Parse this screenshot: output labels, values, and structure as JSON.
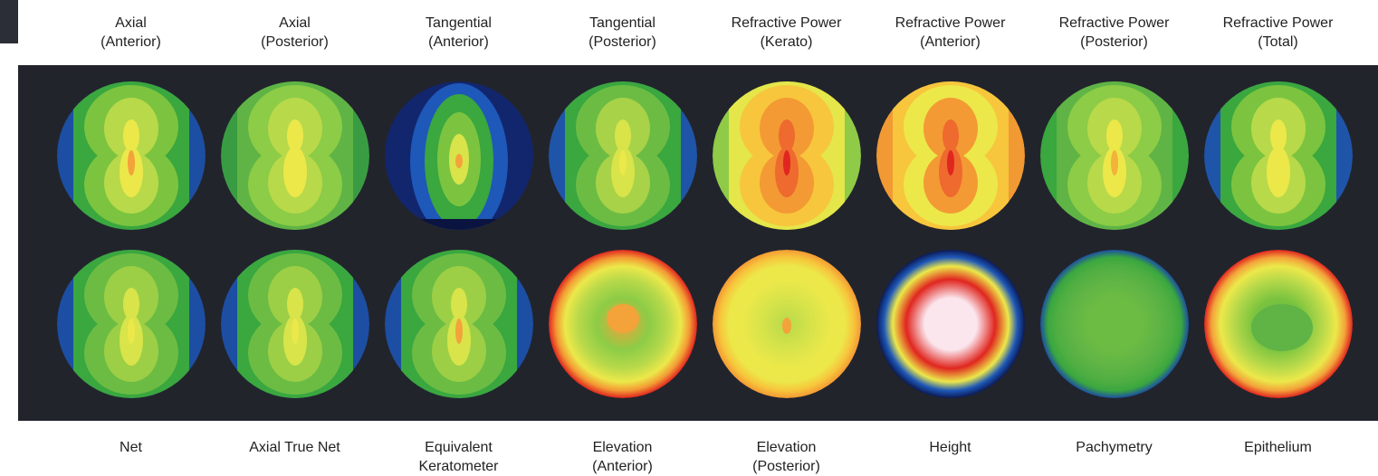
{
  "top_labels": [
    {
      "line1": "Axial",
      "line2": "(Anterior)"
    },
    {
      "line1": "Axial",
      "line2": "(Posterior)"
    },
    {
      "line1": "Tangential",
      "line2": "(Anterior)"
    },
    {
      "line1": "Tangential",
      "line2": "(Posterior)"
    },
    {
      "line1": "Refractive Power",
      "line2": "(Kerato)"
    },
    {
      "line1": "Refractive Power",
      "line2": "(Anterior)"
    },
    {
      "line1": "Refractive Power",
      "line2": "(Posterior)"
    },
    {
      "line1": "Refractive Power",
      "line2": "(Total)"
    }
  ],
  "bottom_labels": [
    {
      "line1": "Net",
      "line2": ""
    },
    {
      "line1": "Axial True Net",
      "line2": ""
    },
    {
      "line1": "Equivalent",
      "line2": "Keratometer"
    },
    {
      "line1": "Elevation",
      "line2": "(Anterior)"
    },
    {
      "line1": "Elevation",
      "line2": "(Posterior)"
    },
    {
      "line1": "Height",
      "line2": ""
    },
    {
      "line1": "Pachymetry",
      "line2": ""
    },
    {
      "line1": "Epithelium",
      "line2": ""
    }
  ],
  "maps": [
    {
      "name": "axial-anterior-map",
      "style": "hourglass",
      "colors": [
        "#1c4fa3",
        "#3aa73f",
        "#7cc43f",
        "#b8d94a",
        "#ece84a",
        "#f3a33a"
      ]
    },
    {
      "name": "axial-posterior-map",
      "style": "hourglass",
      "colors": [
        "#3a9c42",
        "#5fb445",
        "#8ccc46",
        "#b8d94a",
        "#ece84a",
        "#ece84a"
      ]
    },
    {
      "name": "tangential-anterior-map",
      "style": "oval",
      "colors": [
        "#12266e",
        "#1e58b8",
        "#3aa73f",
        "#7cc43f",
        "#d8e44a",
        "#f3a33a"
      ]
    },
    {
      "name": "tangential-posterior-map",
      "style": "hourglass",
      "colors": [
        "#1f55a8",
        "#3aa73f",
        "#6cbc44",
        "#a8d248",
        "#d8e44a",
        "#ece84a"
      ]
    },
    {
      "name": "refractive-power-kerato-map",
      "style": "hourglass",
      "colors": [
        "#8fcb46",
        "#e4e64a",
        "#f7c63c",
        "#f39a34",
        "#ee6a2e",
        "#e0261f"
      ]
    },
    {
      "name": "refractive-power-anterior-map",
      "style": "hourglass",
      "colors": [
        "#f19a33",
        "#f7c63c",
        "#ece84a",
        "#f39a34",
        "#ee6a2e",
        "#e0261f"
      ]
    },
    {
      "name": "refractive-power-posterior-map",
      "style": "hourglass",
      "colors": [
        "#3aa73f",
        "#5fb445",
        "#8ccc46",
        "#b8d94a",
        "#ece84a",
        "#f3b23a"
      ]
    },
    {
      "name": "refractive-power-total-map",
      "style": "hourglass",
      "colors": [
        "#1f55a8",
        "#3aa73f",
        "#7cc43f",
        "#b8d94a",
        "#ece84a",
        "#ece84a"
      ]
    },
    {
      "name": "net-map",
      "style": "hourglass",
      "colors": [
        "#1c4fa3",
        "#3aa73f",
        "#6cbc44",
        "#9ccf46",
        "#d8e44a",
        "#ece84a"
      ]
    },
    {
      "name": "axial-true-net-map",
      "style": "hourglass",
      "colors": [
        "#1c4fa3",
        "#3aa73f",
        "#6cbc44",
        "#9ccf46",
        "#d8e44a",
        "#ece84a"
      ]
    },
    {
      "name": "equivalent-keratometer-map",
      "style": "hourglass",
      "colors": [
        "#1c4fa3",
        "#3aa73f",
        "#6cbc44",
        "#9ccf46",
        "#d8e44a",
        "#f3a33a"
      ]
    },
    {
      "name": "elevation-anterior-map",
      "style": "rings",
      "colors": [
        "#e0261f",
        "#f39a34",
        "#ece84a",
        "#b8d94a",
        "#8ccc46",
        "#f3a33a"
      ]
    },
    {
      "name": "elevation-posterior-map",
      "style": "rings",
      "colors": [
        "#f39a34",
        "#f7c63c",
        "#ece84a",
        "#ece84a",
        "#d8e44a",
        "#b8d94a"
      ]
    },
    {
      "name": "height-map",
      "style": "rings",
      "colors": [
        "#0b1a55",
        "#1e58b8",
        "#ece84a",
        "#e0261f",
        "#fbe6ee",
        "#fbe6ee"
      ]
    },
    {
      "name": "pachymetry-map",
      "style": "rings",
      "colors": [
        "#1c4fa3",
        "#3aa73f",
        "#4fae42",
        "#5fb445",
        "#6cbc44",
        "#6cbc44"
      ]
    },
    {
      "name": "epithelium-map",
      "style": "rings",
      "colors": [
        "#e0261f",
        "#f3a33a",
        "#ece84a",
        "#b8d94a",
        "#7cc43f",
        "#5fb445"
      ]
    }
  ]
}
